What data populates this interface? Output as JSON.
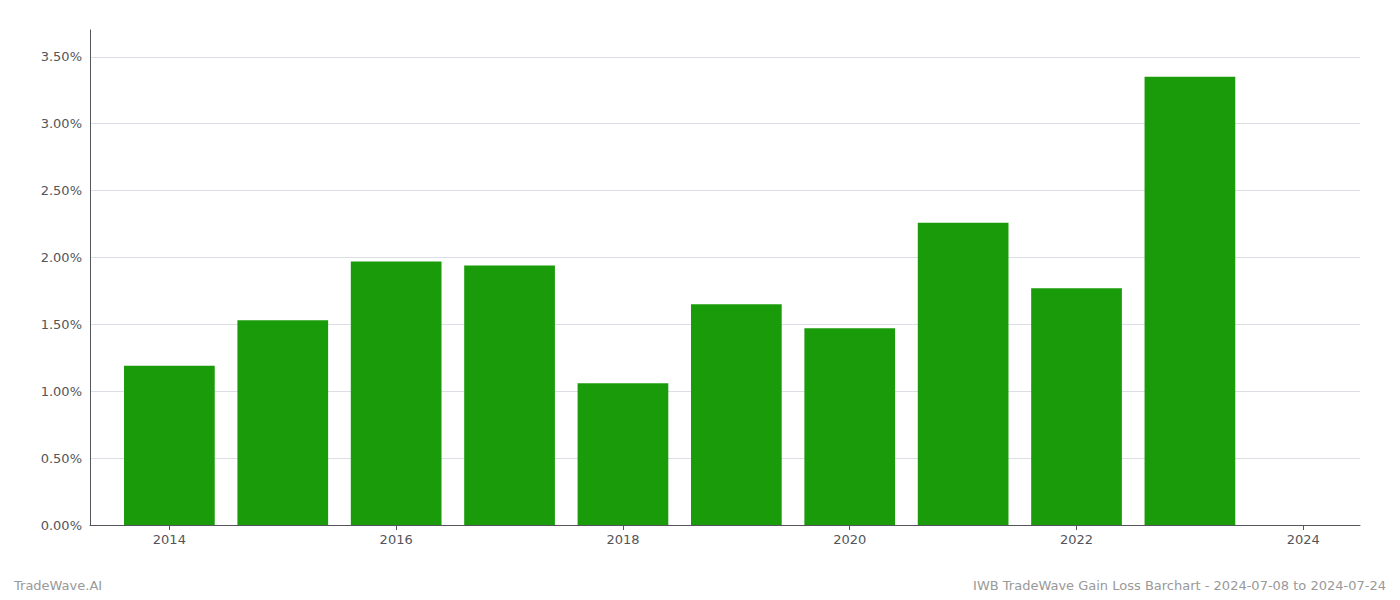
{
  "chart_data": {
    "type": "bar",
    "x": [
      2014,
      2015,
      2016,
      2017,
      2018,
      2019,
      2020,
      2021,
      2022,
      2023
    ],
    "values": [
      0.0119,
      0.0153,
      0.0197,
      0.0194,
      0.0106,
      0.0165,
      0.0147,
      0.0226,
      0.0177,
      0.0335
    ],
    "color": "#1a9c0a",
    "xlim": [
      2013.3,
      2024.5
    ],
    "xticks": [
      2014,
      2016,
      2018,
      2020,
      2022,
      2024
    ],
    "ylim": [
      0,
      0.037
    ],
    "yticks": [
      {
        "value": 0.0,
        "label": "0.00%"
      },
      {
        "value": 0.005,
        "label": "0.50%"
      },
      {
        "value": 0.01,
        "label": "1.00%"
      },
      {
        "value": 0.015,
        "label": "1.50%"
      },
      {
        "value": 0.02,
        "label": "2.00%"
      },
      {
        "value": 0.025,
        "label": "2.50%"
      },
      {
        "value": 0.03,
        "label": "3.00%"
      },
      {
        "value": 0.035,
        "label": "3.50%"
      }
    ],
    "grid": true,
    "annotations": [
      "TradeWave.AI",
      "IWB TradeWave Gain Loss Barchart - 2024-07-08 to 2024-07-24"
    ]
  }
}
